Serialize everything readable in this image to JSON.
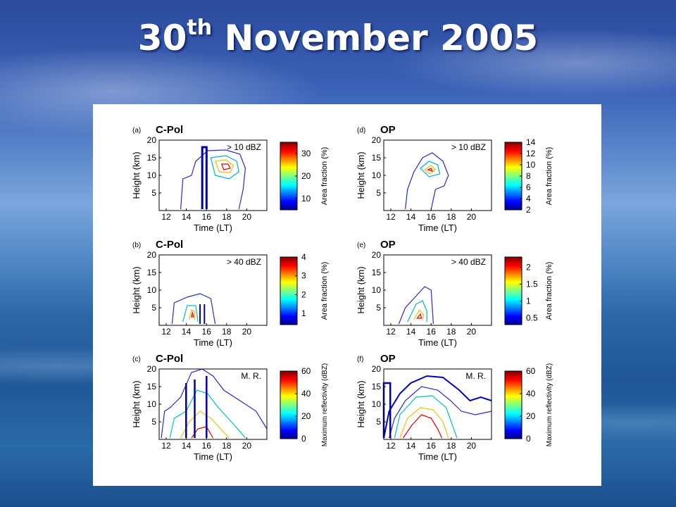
{
  "slide": {
    "title_main": "30",
    "title_sup": "th",
    "title_rest": " November 2005"
  },
  "chart_data": [
    {
      "type": "contour",
      "panel_label": "(a)",
      "radar": "C-Pol",
      "threshold": "> 10 dBZ",
      "xlabel": "Time (LT)",
      "ylabel": "Height (km)",
      "xticks": [
        "12",
        "14",
        "16",
        "18",
        "20"
      ],
      "yticks": [
        "5",
        "10",
        "15",
        "20"
      ],
      "xlim": [
        11.3,
        22
      ],
      "ylim": [
        0,
        20
      ],
      "colorbar_label": "Area fraction (%)",
      "colorbar_ticks": [
        "10",
        "20",
        "30"
      ],
      "colorbar_range": [
        5,
        35
      ]
    },
    {
      "type": "contour",
      "panel_label": "(b)",
      "radar": "C-Pol",
      "threshold": "> 40 dBZ",
      "xlabel": "Time (LT)",
      "ylabel": "Height (km)",
      "xticks": [
        "12",
        "14",
        "16",
        "18",
        "20"
      ],
      "yticks": [
        "5",
        "10",
        "15",
        "20"
      ],
      "xlim": [
        11.3,
        22
      ],
      "ylim": [
        0,
        20
      ],
      "colorbar_label": "Area fraction (%)",
      "colorbar_ticks": [
        "1",
        "2",
        "3",
        "4"
      ],
      "colorbar_range": [
        0.4,
        4
      ]
    },
    {
      "type": "contour",
      "panel_label": "(c)",
      "radar": "C-Pol",
      "threshold": "M. R.",
      "xlabel": "Time (LT)",
      "ylabel": "Height (km)",
      "xticks": [
        "12",
        "14",
        "16",
        "18",
        "20"
      ],
      "yticks": [
        "5",
        "10",
        "15",
        "20"
      ],
      "xlim": [
        11.3,
        22
      ],
      "ylim": [
        0,
        20
      ],
      "colorbar_label": "Maximum reflectivity (dBZ)",
      "colorbar_ticks": [
        "0",
        "20",
        "40",
        "60"
      ],
      "colorbar_range": [
        0,
        60
      ]
    },
    {
      "type": "contour",
      "panel_label": "(d)",
      "radar": "OP",
      "threshold": "> 10 dBZ",
      "xlabel": "Time (LT)",
      "ylabel": "Height (km)",
      "xticks": [
        "12",
        "14",
        "16",
        "18",
        "20"
      ],
      "yticks": [
        "5",
        "10",
        "15",
        "20"
      ],
      "xlim": [
        11.3,
        22
      ],
      "ylim": [
        0,
        20
      ],
      "colorbar_label": "Area fraction (%)",
      "colorbar_ticks": [
        "2",
        "4",
        "6",
        "8",
        "10",
        "12",
        "14"
      ],
      "colorbar_range": [
        2,
        14
      ]
    },
    {
      "type": "contour",
      "panel_label": "(e)",
      "radar": "OP",
      "threshold": "> 40 dBZ",
      "xlabel": "Time (LT)",
      "ylabel": "Height (km)",
      "xticks": [
        "12",
        "14",
        "16",
        "18",
        "20"
      ],
      "yticks": [
        "5",
        "10",
        "15",
        "20"
      ],
      "xlim": [
        11.3,
        22
      ],
      "ylim": [
        0,
        20
      ],
      "colorbar_label": "Area fraction (%)",
      "colorbar_ticks": [
        "0.5",
        "1",
        "1.5",
        "2"
      ],
      "colorbar_range": [
        0.3,
        2.3
      ]
    },
    {
      "type": "contour",
      "panel_label": "(f)",
      "radar": "OP",
      "threshold": "M. R.",
      "xlabel": "Time (LT)",
      "ylabel": "Height (km)",
      "xticks": [
        "12",
        "14",
        "16",
        "18",
        "20"
      ],
      "yticks": [
        "5",
        "10",
        "15",
        "20"
      ],
      "xlim": [
        11.3,
        22
      ],
      "ylim": [
        0,
        20
      ],
      "colorbar_label": "Maximum reflectivity (dBZ)",
      "colorbar_ticks": [
        "0",
        "20",
        "40",
        "60"
      ],
      "colorbar_range": [
        0,
        60
      ]
    }
  ]
}
